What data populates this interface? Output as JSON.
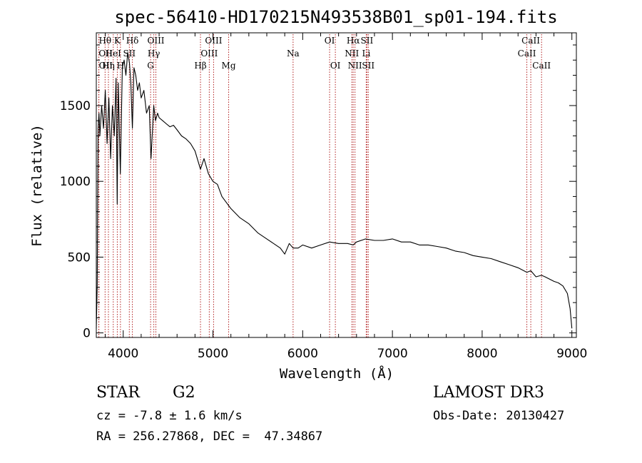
{
  "chart_data": {
    "type": "line",
    "title": "spec-56410-HD170215N493538B01_sp01-194.fits",
    "xlabel": "Wavelength (Å)",
    "ylabel": "Flux (relative)",
    "xlim": [
      3700,
      9050
    ],
    "ylim": [
      -30,
      1980
    ],
    "xticks": [
      4000,
      5000,
      6000,
      7000,
      8000,
      9000
    ],
    "yticks": [
      0,
      500,
      1000,
      1500
    ],
    "xtick_labels": [
      "4000",
      "5000",
      "6000",
      "7000",
      "8000",
      "9000"
    ],
    "ytick_labels": [
      "0",
      "500",
      "1000",
      "1500"
    ],
    "grid": false,
    "series": [
      {
        "name": "spectrum",
        "color": "#000000",
        "x": [
          3700,
          3710,
          3720,
          3730,
          3740,
          3760,
          3780,
          3800,
          3820,
          3840,
          3860,
          3880,
          3900,
          3920,
          3933,
          3945,
          3968,
          3990,
          4010,
          4030,
          4050,
          4070,
          4085,
          4102,
          4120,
          4140,
          4160,
          4180,
          4200,
          4230,
          4260,
          4290,
          4310,
          4340,
          4360,
          4383,
          4400,
          4440,
          4480,
          4520,
          4560,
          4600,
          4650,
          4700,
          4750,
          4800,
          4861,
          4900,
          4950,
          5000,
          5050,
          5100,
          5150,
          5200,
          5300,
          5400,
          5500,
          5600,
          5700,
          5750,
          5800,
          5850,
          5893,
          5950,
          6000,
          6100,
          6200,
          6300,
          6400,
          6500,
          6563,
          6600,
          6700,
          6800,
          6900,
          7000,
          7100,
          7200,
          7300,
          7400,
          7500,
          7600,
          7700,
          7800,
          7900,
          8000,
          8100,
          8200,
          8300,
          8400,
          8498,
          8542,
          8600,
          8662,
          8700,
          8800,
          8850,
          8900,
          8950,
          8980,
          9000
        ],
        "y": [
          30,
          320,
          1350,
          1450,
          1300,
          1500,
          1350,
          1600,
          1250,
          1550,
          1150,
          1500,
          1300,
          1680,
          850,
          1650,
          1050,
          1750,
          1800,
          1700,
          1850,
          1780,
          1650,
          1350,
          1750,
          1700,
          1600,
          1650,
          1550,
          1600,
          1450,
          1500,
          1150,
          1500,
          1400,
          1450,
          1420,
          1400,
          1380,
          1360,
          1370,
          1340,
          1300,
          1280,
          1250,
          1200,
          1080,
          1150,
          1050,
          1000,
          980,
          900,
          860,
          820,
          760,
          720,
          660,
          620,
          580,
          560,
          520,
          590,
          560,
          560,
          580,
          560,
          580,
          600,
          590,
          590,
          580,
          600,
          620,
          610,
          610,
          620,
          600,
          600,
          580,
          580,
          570,
          560,
          540,
          530,
          510,
          500,
          490,
          470,
          450,
          430,
          400,
          410,
          370,
          380,
          370,
          340,
          330,
          310,
          260,
          160,
          30
        ]
      }
    ],
    "lines": [
      {
        "label": "Hθ",
        "wl": 3798,
        "row": 1,
        "ha": "middle"
      },
      {
        "label": "OII",
        "wl": 3727,
        "row": 2,
        "ha": "start"
      },
      {
        "label": "OII",
        "wl": 3729,
        "row": 3,
        "ha": "start"
      },
      {
        "label": "K",
        "wl": 3934,
        "row": 1,
        "ha": "middle"
      },
      {
        "label": "HeI",
        "wl": 3889,
        "row": 2,
        "ha": "middle"
      },
      {
        "label": "Hη",
        "wl": 3835,
        "row": 3,
        "ha": "middle"
      },
      {
        "label": "Hδ",
        "wl": 4102,
        "row": 1,
        "ha": "middle"
      },
      {
        "label": "SII",
        "wl": 4068,
        "row": 2,
        "ha": "middle"
      },
      {
        "label": "H",
        "wl": 3969,
        "row": 3,
        "ha": "middle"
      },
      {
        "label": "OIII",
        "wl": 4364,
        "row": 1,
        "ha": "middle"
      },
      {
        "label": "Hγ",
        "wl": 4341,
        "row": 2,
        "ha": "middle"
      },
      {
        "label": "G",
        "wl": 4305,
        "row": 3,
        "ha": "middle"
      },
      {
        "label": "OIII",
        "wl": 5007,
        "row": 1,
        "ha": "middle"
      },
      {
        "label": "OIII",
        "wl": 4959,
        "row": 2,
        "ha": "middle"
      },
      {
        "label": "Hβ",
        "wl": 4861,
        "row": 3,
        "ha": "middle"
      },
      {
        "label": "Mg",
        "wl": 5175,
        "row": 3,
        "ha": "middle"
      },
      {
        "label": "Na",
        "wl": 5893,
        "row": 2,
        "ha": "middle"
      },
      {
        "label": "OI",
        "wl": 6300,
        "row": 1,
        "ha": "middle"
      },
      {
        "label": "OI",
        "wl": 6364,
        "row": 3,
        "ha": "middle"
      },
      {
        "label": "Hα",
        "wl": 6563,
        "row": 1,
        "ha": "middle"
      },
      {
        "label": "SII",
        "wl": 6716,
        "row": 1,
        "ha": "middle"
      },
      {
        "label": "NII",
        "wl": 6548,
        "row": 2,
        "ha": "middle"
      },
      {
        "label": "Li",
        "wl": 6708,
        "row": 2,
        "ha": "middle"
      },
      {
        "label": "NII",
        "wl": 6583,
        "row": 3,
        "ha": "middle"
      },
      {
        "label": "SII",
        "wl": 6731,
        "row": 3,
        "ha": "middle"
      },
      {
        "label": "CaII",
        "wl": 8542,
        "row": 1,
        "ha": "middle"
      },
      {
        "label": "CaII",
        "wl": 8498,
        "row": 2,
        "ha": "middle"
      },
      {
        "label": "CaII",
        "wl": 8662,
        "row": 3,
        "ha": "middle"
      }
    ]
  },
  "info": {
    "class_label": "STAR",
    "subclass": "G2",
    "survey": "LAMOST DR3",
    "cz": "cz = -7.8 ± 1.6 km/s",
    "obs_date": "Obs-Date: 20130427",
    "coords": "RA = 256.27868, DEC =  47.34867"
  },
  "colors": {
    "spectrum": "#000000",
    "line_marker": "#b22222",
    "axis": "#000000"
  }
}
